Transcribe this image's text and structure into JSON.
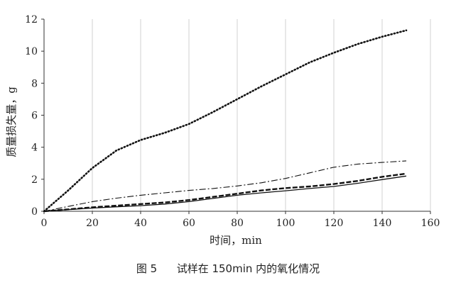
{
  "figure": {
    "caption_label": "图 5",
    "caption_text": "试样在 150min 内的氧化情况"
  },
  "chart_data": {
    "type": "line",
    "title": "",
    "xlabel": "时间，min",
    "ylabel": "质量损失量，g",
    "xlim": [
      0,
      160
    ],
    "ylim": [
      0,
      12
    ],
    "xticks": [
      0,
      20,
      40,
      60,
      80,
      100,
      120,
      140,
      160
    ],
    "yticks": [
      0,
      2,
      4,
      6,
      8,
      10,
      12
    ],
    "grid": "vertical",
    "legend": "none",
    "series": [
      {
        "style": "dotted",
        "color": "#111111",
        "x": [
          0,
          10,
          20,
          30,
          40,
          50,
          60,
          70,
          80,
          90,
          100,
          110,
          120,
          130,
          140,
          150
        ],
        "y": [
          0,
          1.3,
          2.7,
          3.8,
          4.45,
          4.9,
          5.45,
          6.2,
          7.0,
          7.8,
          8.55,
          9.3,
          9.9,
          10.45,
          10.9,
          11.3
        ]
      },
      {
        "style": "dash-dot",
        "color": "#111111",
        "x": [
          0,
          10,
          20,
          30,
          40,
          50,
          60,
          70,
          80,
          90,
          100,
          110,
          120,
          130,
          140,
          150
        ],
        "y": [
          0,
          0.3,
          0.6,
          0.82,
          1.0,
          1.15,
          1.3,
          1.42,
          1.58,
          1.78,
          2.05,
          2.4,
          2.75,
          2.95,
          3.05,
          3.15
        ]
      },
      {
        "style": "dashed",
        "color": "#111111",
        "x": [
          0,
          10,
          20,
          30,
          40,
          50,
          60,
          70,
          80,
          90,
          100,
          110,
          120,
          130,
          140,
          150
        ],
        "y": [
          0,
          0.12,
          0.25,
          0.35,
          0.45,
          0.55,
          0.7,
          0.9,
          1.1,
          1.3,
          1.45,
          1.55,
          1.7,
          1.9,
          2.15,
          2.35
        ]
      },
      {
        "style": "solid",
        "color": "#111111",
        "x": [
          0,
          10,
          20,
          30,
          40,
          50,
          60,
          70,
          80,
          90,
          100,
          110,
          120,
          130,
          140,
          150
        ],
        "y": [
          0,
          0.1,
          0.2,
          0.28,
          0.35,
          0.45,
          0.6,
          0.8,
          1.0,
          1.15,
          1.28,
          1.42,
          1.55,
          1.75,
          1.98,
          2.2
        ]
      }
    ]
  }
}
